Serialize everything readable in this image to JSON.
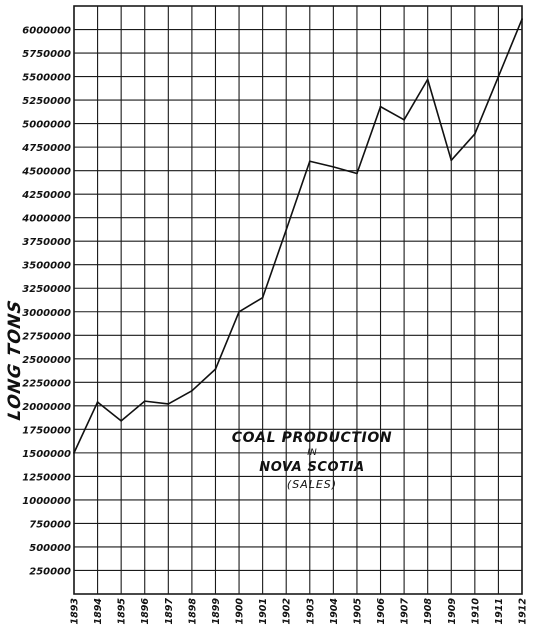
{
  "chart_data": {
    "type": "line",
    "title_lines": [
      "COAL PRODUCTION",
      "IN",
      "NOVA SCOTIA",
      "(SALES)"
    ],
    "xlabel": "",
    "ylabel": "LONG TONS",
    "categories": [
      "1893",
      "1894",
      "1895",
      "1896",
      "1897",
      "1898",
      "1899",
      "1900",
      "1901",
      "1902",
      "1903",
      "1904",
      "1905",
      "1906",
      "1907",
      "1908",
      "1909",
      "1910",
      "1911",
      "1912"
    ],
    "series": [
      {
        "values": [
          1500000,
          2040000,
          1840000,
          2050000,
          2020000,
          2160000,
          2390000,
          3000000,
          3150000,
          3870000,
          4600000,
          4540000,
          4470000,
          5180000,
          5040000,
          5470000,
          4610000,
          4890000,
          5500000,
          6110000
        ]
      }
    ],
    "y_ticks": [
      "250000",
      "500000",
      "750000",
      "1000000",
      "1250000",
      "1500000",
      "1750000",
      "2000000",
      "2250000",
      "2500000",
      "2750000",
      "3000000",
      "3250000",
      "3500000",
      "3750000",
      "4000000",
      "4250000",
      "4500000",
      "4750000",
      "5000000",
      "5250000",
      "5500000",
      "5750000",
      "6000000"
    ],
    "ylim": [
      0,
      6250000
    ],
    "grid": true,
    "colors": {
      "line": "#111111",
      "grid": "#1a1a1a",
      "background": "#ffffff"
    }
  }
}
